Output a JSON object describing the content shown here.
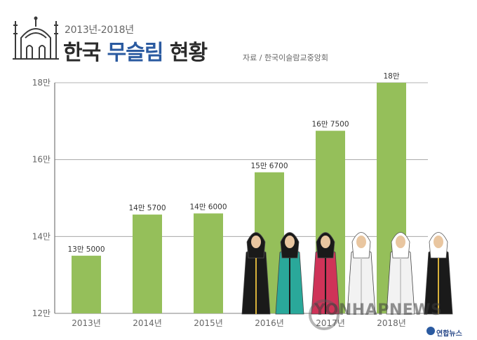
{
  "header": {
    "subtitle": "2013년-2018년",
    "title_main": "한국 ",
    "title_accent": "무슬림",
    "title_end": " 현황",
    "source": "자료 / 한국이슬람교중앙회"
  },
  "colors": {
    "bar": "#95bf5a",
    "grid": "#9a9a9a",
    "title_accent": "#2a5aa0"
  },
  "icons": [
    "mosque-icon",
    "people-illustration",
    "watermark-logo",
    "agency-logo"
  ],
  "watermark": "YONHAPNEWS",
  "agency": "연합뉴스",
  "chart_data": {
    "type": "bar",
    "categories": [
      "2013년",
      "2014년",
      "2015년",
      "2016년",
      "2017년",
      "2018년"
    ],
    "values": [
      135000,
      145700,
      146000,
      156700,
      167500,
      180000
    ],
    "data_labels": [
      "13만 5000",
      "14만 5700",
      "14만 6000",
      "15만 6700",
      "16만 7500",
      "18만"
    ],
    "y_ticks": [
      {
        "value": 120000,
        "label": "12만"
      },
      {
        "value": 140000,
        "label": "14만"
      },
      {
        "value": 160000,
        "label": "16만"
      },
      {
        "value": 180000,
        "label": "18만"
      }
    ],
    "ylim": [
      120000,
      180000
    ],
    "grid": true
  }
}
